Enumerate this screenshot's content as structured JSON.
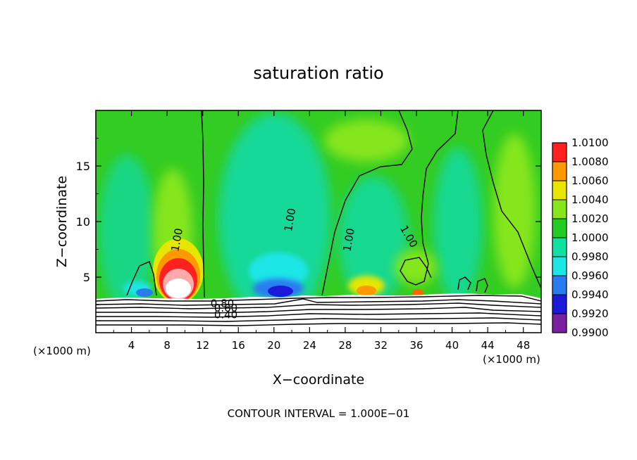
{
  "chart_data": {
    "type": "heatmap",
    "title": "saturation ratio",
    "xlabel": "X−coordinate",
    "ylabel": "Z−coordinate",
    "x_unit_left": "(×1000 m)",
    "x_unit_right": "(×1000 m)",
    "footer": "CONTOUR INTERVAL = 1.000E−01",
    "xlim": [
      0,
      50
    ],
    "ylim": [
      0,
      20
    ],
    "x_ticks": [
      4,
      8,
      12,
      16,
      20,
      24,
      28,
      32,
      36,
      40,
      44,
      48
    ],
    "x_tick_labels": [
      "4",
      "8",
      "12",
      "16",
      "20",
      "24",
      "28",
      "32",
      "36",
      "40",
      "44",
      "48"
    ],
    "y_ticks": [
      5,
      10,
      15
    ],
    "y_tick_labels": [
      "5",
      "10",
      "15"
    ],
    "colorbar": {
      "levels": [
        0.99,
        0.992,
        0.994,
        0.996,
        0.998,
        1.0,
        1.002,
        1.004,
        1.006,
        1.008,
        1.01
      ],
      "labels": [
        "0.9900",
        "0.9920",
        "0.9940",
        "0.9960",
        "0.9980",
        "1.0000",
        "1.0020",
        "1.0040",
        "1.0060",
        "1.0080",
        "1.0100"
      ],
      "colors": [
        "#7a1fa0",
        "#1a1ad8",
        "#2b7bf0",
        "#1ee6e6",
        "#10e0a0",
        "#22cc22",
        "#86e61a",
        "#e6e600",
        "#ff9900",
        "#ff2020",
        "#ffaaaa"
      ]
    },
    "contour_labels": [
      {
        "text": "1.00",
        "x": 9.5,
        "y": 8.3
      },
      {
        "text": "1.00",
        "x": 22.2,
        "y": 10.1
      },
      {
        "text": "1.00",
        "x": 28.8,
        "y": 8.3
      },
      {
        "text": "1.00",
        "x": 34.8,
        "y": 8.5
      },
      {
        "text": "0.80",
        "x": 14.2,
        "y": 2.3
      },
      {
        "text": "0.60",
        "x": 14.6,
        "y": 1.9
      },
      {
        "text": "0.40",
        "x": 14.6,
        "y": 1.3
      }
    ]
  }
}
